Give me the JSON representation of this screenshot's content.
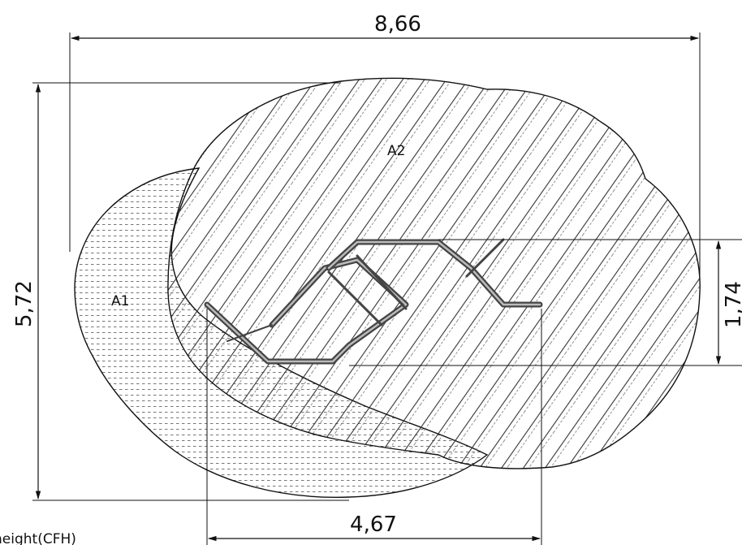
{
  "dimensions": {
    "overall_width": "8,66",
    "overall_height": "5,72",
    "structure_height": "1,74",
    "structure_width": "4,67"
  },
  "areas": {
    "a1_label": "A1",
    "a2_label": "A2"
  },
  "footer": {
    "caption": "height(CFH)"
  },
  "colors": {
    "line": "#111111",
    "hatch_a2": "#333333",
    "dots_a1": "#555555",
    "structure": "#555555"
  }
}
